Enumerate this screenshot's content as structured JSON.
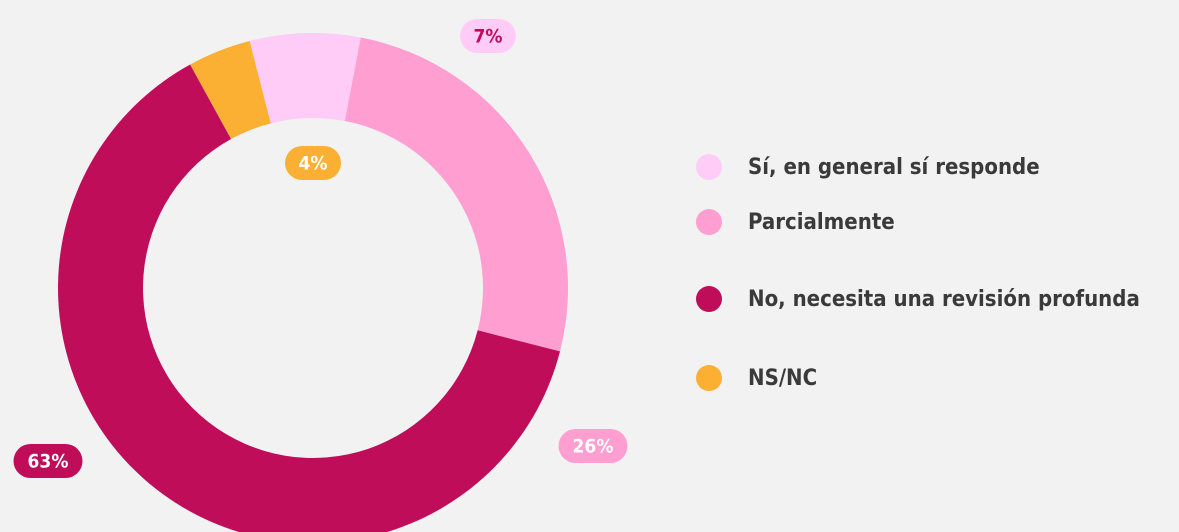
{
  "chart_data": {
    "type": "donut",
    "series": [
      {
        "name": "Sí, en general sí responde",
        "color": "#ffccf7",
        "values": [
          7
        ],
        "value_labels": [
          "7%"
        ]
      },
      {
        "name": "Parcialmente",
        "color": "#ff9fd1",
        "values": [
          26
        ],
        "value_labels": [
          "26%"
        ]
      },
      {
        "name": "No, necesita una revisión profunda",
        "color": "#bf0d5a",
        "values": [
          63
        ],
        "value_labels": [
          "63%"
        ]
      },
      {
        "name": "NS/NC",
        "color": "#fbb034",
        "values": [
          4
        ],
        "value_labels": [
          "4%"
        ]
      }
    ],
    "legend": "right"
  }
}
